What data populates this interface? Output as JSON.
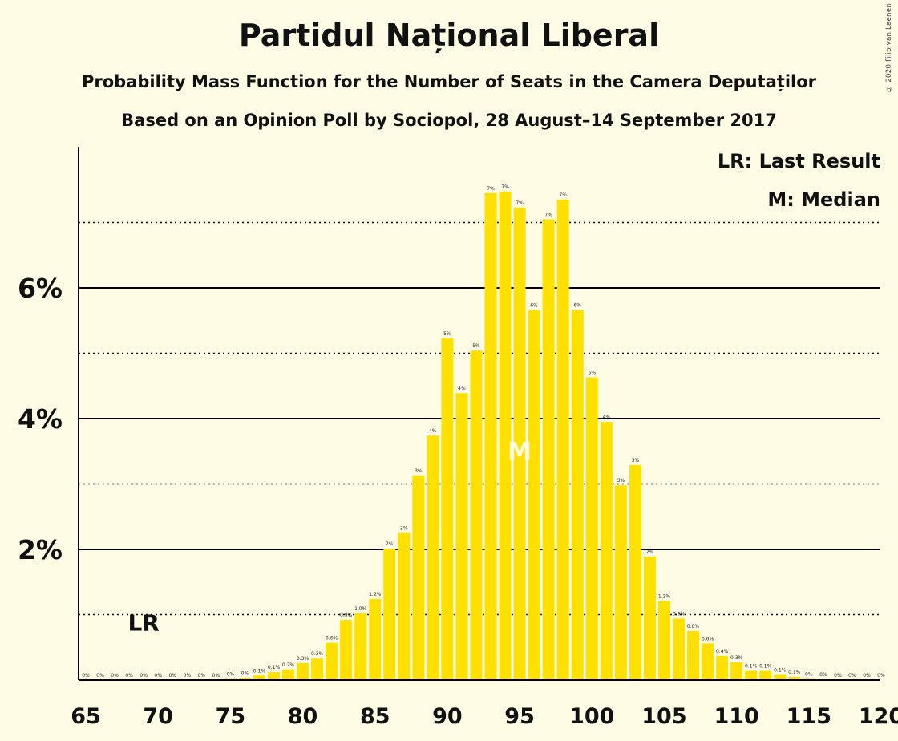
{
  "header": {
    "title": "Partidul Național Liberal",
    "subtitle": "Probability Mass Function for the Number of Seats in the Camera Deputaților",
    "subtitle2": "Based on an Opinion Poll by Sociopol, 28 August–14 September 2017",
    "copyright": "© 2020 Filip van Laenen"
  },
  "legend": {
    "last_result": "LR: Last Result",
    "median": "M: Median"
  },
  "colors": {
    "bar": "#FFE000",
    "background": "#FFFCE6",
    "axis": "#000000"
  },
  "chart_data": {
    "type": "bar",
    "xlabel": "",
    "ylabel": "",
    "ylim": [
      0,
      0.08
    ],
    "y_ticks": [
      0.02,
      0.04,
      0.06
    ],
    "y_tick_labels": [
      "2%",
      "4%",
      "6%"
    ],
    "y_dotted_lines": [
      0.01,
      0.03,
      0.05,
      0.07
    ],
    "x_ticks": [
      65,
      70,
      75,
      80,
      85,
      90,
      95,
      100,
      105,
      110,
      115,
      120
    ],
    "last_result": {
      "seat": 69,
      "label": "LR"
    },
    "median": {
      "seat": 95,
      "label": "M"
    },
    "seats": [
      65,
      66,
      67,
      68,
      69,
      70,
      71,
      72,
      73,
      74,
      75,
      76,
      77,
      78,
      79,
      80,
      81,
      82,
      83,
      84,
      85,
      86,
      87,
      88,
      89,
      90,
      91,
      92,
      93,
      94,
      95,
      96,
      97,
      98,
      99,
      100,
      101,
      102,
      103,
      104,
      105,
      106,
      107,
      108,
      109,
      110,
      111,
      112,
      113,
      114,
      115,
      116,
      117,
      118,
      119,
      120
    ],
    "values": [
      0,
      0,
      0,
      0,
      0,
      0,
      0,
      0,
      0,
      0,
      0.0002,
      0.0003,
      0.0007,
      0.0012,
      0.0016,
      0.0026,
      0.0033,
      0.0057,
      0.0092,
      0.0102,
      0.0124,
      0.0201,
      0.0225,
      0.0313,
      0.0374,
      0.0523,
      0.0439,
      0.0504,
      0.0745,
      0.0747,
      0.0723,
      0.0566,
      0.0705,
      0.0735,
      0.0566,
      0.0463,
      0.0395,
      0.0298,
      0.0329,
      0.0189,
      0.0121,
      0.0094,
      0.0075,
      0.0056,
      0.0037,
      0.0027,
      0.0014,
      0.0014,
      0.0008,
      0.0005,
      0.0002,
      0.0001,
      0,
      0,
      0,
      0
    ],
    "data_labels": [
      "0%",
      "0%",
      "0%",
      "0%",
      "0%",
      "0%",
      "0%",
      "0%",
      "0%",
      "0%",
      "0%",
      "0%",
      "0.1%",
      "0.1%",
      "0.2%",
      "0.3%",
      "0.3%",
      "0.6%",
      "0.9%",
      "1.0%",
      "1.2%",
      "2%",
      "2%",
      "3%",
      "4%",
      "5%",
      "4%",
      "5%",
      "7%",
      "7%",
      "7%",
      "6%",
      "7%",
      "7%",
      "6%",
      "5%",
      "4%",
      "3%",
      "3%",
      "2%",
      "1.2%",
      "0.9%",
      "0.8%",
      "0.6%",
      "0.4%",
      "0.3%",
      "0.1%",
      "0.1%",
      "0.1%",
      "0.1%",
      "0%",
      "0%",
      "0%",
      "0%",
      "0%",
      "0%"
    ]
  }
}
